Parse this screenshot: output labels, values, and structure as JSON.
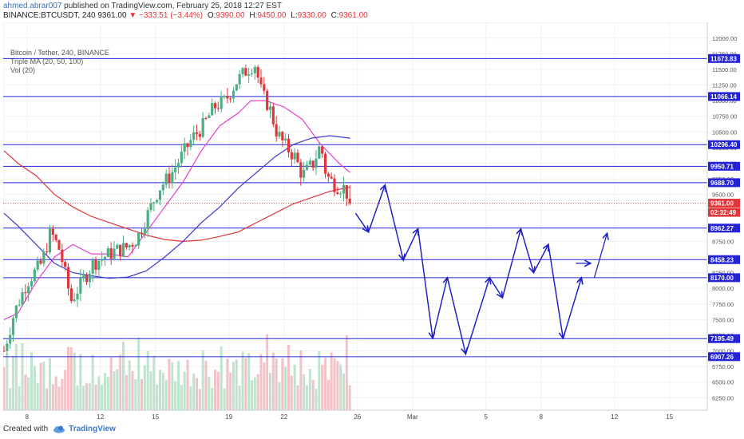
{
  "header": {
    "author": "ahmed.abrar007",
    "published_text": "published on TradingView.com, February 25, 2018 12:27 EST",
    "symbol_interval": "BINANCE:BTCUSDT, 240",
    "last_price": "9361.00",
    "change_text": "−333.51 (−3.44%)",
    "ohlc": [
      {
        "label": "O:",
        "value": "9390.00"
      },
      {
        "label": "H:",
        "value": "9450.00"
      },
      {
        "label": "L:",
        "value": "9330.00"
      },
      {
        "label": "C:",
        "value": "9361.00"
      }
    ]
  },
  "legend": {
    "line1": "Bitcoin / Tether, 240, BINANCE",
    "line2": "Triple MA (20, 50, 100)",
    "line3": "Vol (20)"
  },
  "footer": {
    "created_with": "Created with",
    "brand": "TradingView"
  },
  "colors": {
    "up": "#4caf83",
    "down": "#e0353b",
    "vol_up": "#bfe3cf",
    "vol_down": "#f3c2c7",
    "ma20": "#e63fd0",
    "ma50": "#e0353b",
    "ma100": "#3a3ad0",
    "level": "#2424d6",
    "projection": "#1f1fc4",
    "price_label": "#e0353b",
    "time_label": "#e0353b"
  },
  "chart_data": {
    "type": "candlestick",
    "ylim": [
      6050,
      12150
    ],
    "y_ticks": [
      6250,
      6500,
      6750,
      7000,
      7250,
      7500,
      7750,
      8000,
      8250,
      8500,
      8750,
      9000,
      9250,
      9500,
      9750,
      10000,
      10250,
      10500,
      10750,
      11000,
      11250,
      11500,
      11750,
      12000
    ],
    "x_ticks": [
      {
        "label": "8",
        "day": 8
      },
      {
        "label": "12",
        "day": 12
      },
      {
        "label": "15",
        "day": 15
      },
      {
        "label": "19",
        "day": 19
      },
      {
        "label": "22",
        "day": 22
      },
      {
        "label": "26",
        "day": 26
      },
      {
        "label": "Mar",
        "day": 29
      },
      {
        "label": "5",
        "day": 33
      },
      {
        "label": "8",
        "day": 36
      },
      {
        "label": "12",
        "day": 40
      },
      {
        "label": "15",
        "day": 43
      }
    ],
    "x_start_day": 6.75,
    "last_price": {
      "value": 9361.0,
      "label": "9361.00"
    },
    "countdown_label": "02:32:49",
    "levels": [
      {
        "value": 11673.83,
        "label": "11673.83"
      },
      {
        "value": 11066.14,
        "label": "11066.14"
      },
      {
        "value": 10296.4,
        "label": "10296.40"
      },
      {
        "value": 9950.71,
        "label": "9950.71"
      },
      {
        "value": 9688.7,
        "label": "9688.70"
      },
      {
        "value": 8962.27,
        "label": "8962.27"
      },
      {
        "value": 8458.23,
        "label": "8458.23"
      },
      {
        "value": 8170.0,
        "label": "8170.00"
      },
      {
        "value": 7195.49,
        "label": "7195.49"
      },
      {
        "value": 6907.26,
        "label": "6907.26"
      }
    ],
    "anchors": [
      [
        6.75,
        7000
      ],
      [
        7.3,
        7600
      ],
      [
        8.0,
        8100
      ],
      [
        8.8,
        8400
      ],
      [
        9.3,
        8900
      ],
      [
        9.8,
        8600
      ],
      [
        10.4,
        7800
      ],
      [
        11.0,
        8100
      ],
      [
        11.6,
        8400
      ],
      [
        12.2,
        8500
      ],
      [
        12.8,
        8600
      ],
      [
        13.4,
        8650
      ],
      [
        14.0,
        8800
      ],
      [
        14.6,
        9200
      ],
      [
        15.2,
        9600
      ],
      [
        15.8,
        9800
      ],
      [
        16.4,
        10100
      ],
      [
        17.0,
        10400
      ],
      [
        17.6,
        10600
      ],
      [
        18.2,
        10900
      ],
      [
        18.8,
        11000
      ],
      [
        19.4,
        11300
      ],
      [
        20.0,
        11500
      ],
      [
        20.4,
        11600
      ],
      [
        20.8,
        11100
      ],
      [
        21.2,
        10900
      ],
      [
        21.6,
        10500
      ],
      [
        22.0,
        10300
      ],
      [
        22.6,
        10100
      ],
      [
        23.0,
        9800
      ],
      [
        23.6,
        10000
      ],
      [
        24.0,
        10300
      ],
      [
        24.3,
        9800
      ],
      [
        24.8,
        9650
      ],
      [
        25.3,
        9600
      ],
      [
        25.65,
        9361
      ]
    ],
    "ma20": [
      [
        6.75,
        7500
      ],
      [
        7.5,
        7600
      ],
      [
        8.5,
        8100
      ],
      [
        9.5,
        8500
      ],
      [
        10.5,
        8700
      ],
      [
        11.5,
        8550
      ],
      [
        12.5,
        8550
      ],
      [
        13.5,
        8500
      ],
      [
        14.5,
        8900
      ],
      [
        15.5,
        9300
      ],
      [
        16.5,
        9700
      ],
      [
        17.5,
        10200
      ],
      [
        18.5,
        10600
      ],
      [
        19.5,
        10800
      ],
      [
        20.2,
        11000
      ],
      [
        21,
        11000
      ],
      [
        22,
        10900
      ],
      [
        23,
        10700
      ],
      [
        24,
        10300
      ],
      [
        25,
        10000
      ],
      [
        25.6,
        9850
      ]
    ],
    "ma50": [
      [
        6.75,
        10200
      ],
      [
        7.5,
        10000
      ],
      [
        8.5,
        9800
      ],
      [
        9.5,
        9500
      ],
      [
        10.5,
        9300
      ],
      [
        11.5,
        9150
      ],
      [
        12.5,
        9050
      ],
      [
        13.5,
        8950
      ],
      [
        14.5,
        8850
      ],
      [
        15.5,
        8780
      ],
      [
        16.5,
        8750
      ],
      [
        17.5,
        8770
      ],
      [
        18.5,
        8830
      ],
      [
        19.5,
        8900
      ],
      [
        20.5,
        9050
      ],
      [
        21.5,
        9200
      ],
      [
        22.5,
        9350
      ],
      [
        23.5,
        9450
      ],
      [
        24.5,
        9550
      ],
      [
        25.6,
        9620
      ]
    ],
    "ma100": [
      [
        6.75,
        9200
      ],
      [
        7.5,
        9000
      ],
      [
        8.5,
        8700
      ],
      [
        9.5,
        8400
      ],
      [
        10.5,
        8250
      ],
      [
        11.5,
        8200
      ],
      [
        12.5,
        8160
      ],
      [
        13.5,
        8180
      ],
      [
        14.5,
        8280
      ],
      [
        15.5,
        8500
      ],
      [
        16.5,
        8750
      ],
      [
        17.5,
        9050
      ],
      [
        18.5,
        9300
      ],
      [
        19.5,
        9600
      ],
      [
        20.5,
        9850
      ],
      [
        21.5,
        10100
      ],
      [
        22.5,
        10300
      ],
      [
        23.5,
        10400
      ],
      [
        24.5,
        10440
      ],
      [
        25.6,
        10400
      ]
    ],
    "projection_path": [
      [
        25.9,
        9200
      ],
      [
        26.6,
        8900
      ],
      [
        27.5,
        9650
      ],
      [
        28.5,
        8450
      ],
      [
        29.3,
        8950
      ],
      [
        30.1,
        7200
      ],
      [
        30.9,
        8170
      ],
      [
        31.9,
        6950
      ],
      [
        33.2,
        8170
      ],
      [
        33.9,
        7850
      ],
      [
        34.9,
        8950
      ],
      [
        35.6,
        8250
      ],
      [
        36.4,
        8700
      ],
      [
        37.2,
        7200
      ],
      [
        38.2,
        8170
      ]
    ],
    "projection_arrow": [
      [
        38.9,
        8170
      ],
      [
        39.6,
        8880
      ]
    ],
    "small_arrow": [
      [
        37.9,
        8400
      ],
      [
        38.7,
        8400
      ]
    ],
    "volume_ylim": [
      0,
      1
    ]
  }
}
